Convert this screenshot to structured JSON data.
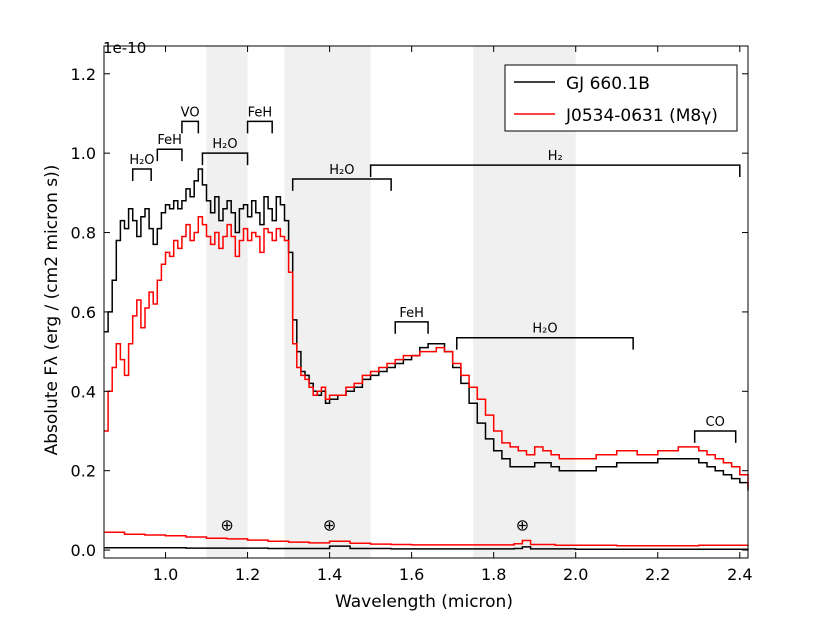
{
  "chart_data": {
    "type": "line",
    "xlabel": "Wavelength (micron)",
    "ylabel": "Absolute Fλ (erg / (cm2 micron s))",
    "offset_label": "1e-10",
    "xlim": [
      0.85,
      2.42
    ],
    "ylim": [
      -0.02,
      1.27
    ],
    "x_ticks": [
      1.0,
      1.2,
      1.4,
      1.6,
      1.8,
      2.0,
      2.2,
      2.4
    ],
    "x_tick_labels": [
      "1.0",
      "1.2",
      "1.4",
      "1.6",
      "1.8",
      "2.0",
      "2.2",
      "2.4"
    ],
    "y_ticks": [
      0.0,
      0.2,
      0.4,
      0.6,
      0.8,
      1.0,
      1.2
    ],
    "y_tick_labels": [
      "0.0",
      "0.2",
      "0.4",
      "0.6",
      "0.8",
      "1.0",
      "1.2"
    ],
    "grid": false,
    "legend_position": "top-right",
    "telluric_bands": [
      [
        1.1,
        1.2
      ],
      [
        1.29,
        1.5
      ],
      [
        1.75,
        2.0
      ]
    ],
    "earth_symbol": "⊕",
    "earth_markers": [
      1.15,
      1.4,
      1.87
    ],
    "earth_marker_y": 0.065,
    "series": [
      {
        "name": "GJ 660.1B",
        "color": "#000000",
        "x": [
          0.85,
          0.86,
          0.87,
          0.88,
          0.89,
          0.9,
          0.91,
          0.92,
          0.93,
          0.94,
          0.95,
          0.96,
          0.97,
          0.98,
          0.99,
          1.0,
          1.01,
          1.02,
          1.03,
          1.04,
          1.05,
          1.06,
          1.07,
          1.08,
          1.09,
          1.1,
          1.11,
          1.12,
          1.13,
          1.14,
          1.15,
          1.16,
          1.17,
          1.18,
          1.19,
          1.2,
          1.21,
          1.22,
          1.23,
          1.24,
          1.25,
          1.26,
          1.27,
          1.28,
          1.29,
          1.3,
          1.31,
          1.32,
          1.33,
          1.34,
          1.35,
          1.36,
          1.37,
          1.38,
          1.39,
          1.4,
          1.42,
          1.44,
          1.46,
          1.48,
          1.5,
          1.52,
          1.54,
          1.56,
          1.58,
          1.6,
          1.62,
          1.64,
          1.66,
          1.68,
          1.7,
          1.72,
          1.74,
          1.76,
          1.78,
          1.8,
          1.82,
          1.84,
          1.86,
          1.88,
          1.9,
          1.92,
          1.94,
          1.96,
          1.98,
          2.0,
          2.05,
          2.1,
          2.15,
          2.2,
          2.25,
          2.28,
          2.3,
          2.32,
          2.34,
          2.36,
          2.38,
          2.4,
          2.42
        ],
        "y": [
          0.55,
          0.6,
          0.68,
          0.78,
          0.83,
          0.81,
          0.86,
          0.83,
          0.79,
          0.84,
          0.86,
          0.81,
          0.77,
          0.81,
          0.85,
          0.87,
          0.86,
          0.88,
          0.86,
          0.88,
          0.91,
          0.89,
          0.93,
          0.96,
          0.92,
          0.88,
          0.85,
          0.89,
          0.83,
          0.86,
          0.88,
          0.85,
          0.8,
          0.86,
          0.87,
          0.84,
          0.88,
          0.85,
          0.82,
          0.89,
          0.86,
          0.83,
          0.89,
          0.87,
          0.83,
          0.75,
          0.58,
          0.5,
          0.45,
          0.44,
          0.42,
          0.4,
          0.39,
          0.4,
          0.37,
          0.38,
          0.39,
          0.4,
          0.41,
          0.43,
          0.44,
          0.45,
          0.46,
          0.47,
          0.48,
          0.49,
          0.51,
          0.52,
          0.52,
          0.5,
          0.46,
          0.42,
          0.37,
          0.32,
          0.28,
          0.25,
          0.23,
          0.21,
          0.21,
          0.21,
          0.22,
          0.22,
          0.21,
          0.2,
          0.2,
          0.2,
          0.21,
          0.22,
          0.22,
          0.23,
          0.23,
          0.23,
          0.22,
          0.21,
          0.2,
          0.19,
          0.18,
          0.17,
          0.15
        ]
      },
      {
        "name": "J0534-0631 (M8γ)",
        "color": "#ff0000",
        "x": [
          0.85,
          0.86,
          0.87,
          0.88,
          0.89,
          0.9,
          0.91,
          0.92,
          0.93,
          0.94,
          0.95,
          0.96,
          0.97,
          0.98,
          0.99,
          1.0,
          1.01,
          1.02,
          1.03,
          1.04,
          1.05,
          1.06,
          1.07,
          1.08,
          1.09,
          1.1,
          1.11,
          1.12,
          1.13,
          1.14,
          1.15,
          1.16,
          1.17,
          1.18,
          1.19,
          1.2,
          1.21,
          1.22,
          1.23,
          1.24,
          1.25,
          1.26,
          1.27,
          1.28,
          1.29,
          1.3,
          1.31,
          1.32,
          1.33,
          1.34,
          1.35,
          1.36,
          1.37,
          1.38,
          1.39,
          1.4,
          1.42,
          1.44,
          1.46,
          1.48,
          1.5,
          1.52,
          1.54,
          1.56,
          1.58,
          1.6,
          1.62,
          1.64,
          1.66,
          1.68,
          1.7,
          1.72,
          1.74,
          1.76,
          1.78,
          1.8,
          1.82,
          1.84,
          1.86,
          1.88,
          1.9,
          1.92,
          1.94,
          1.96,
          1.98,
          2.0,
          2.05,
          2.1,
          2.15,
          2.2,
          2.25,
          2.28,
          2.3,
          2.32,
          2.34,
          2.36,
          2.38,
          2.4,
          2.42
        ],
        "y": [
          0.3,
          0.4,
          0.46,
          0.52,
          0.48,
          0.44,
          0.52,
          0.59,
          0.63,
          0.56,
          0.61,
          0.65,
          0.62,
          0.68,
          0.72,
          0.75,
          0.74,
          0.78,
          0.76,
          0.79,
          0.82,
          0.78,
          0.8,
          0.84,
          0.82,
          0.79,
          0.77,
          0.8,
          0.76,
          0.79,
          0.82,
          0.79,
          0.74,
          0.78,
          0.81,
          0.78,
          0.8,
          0.79,
          0.75,
          0.81,
          0.8,
          0.78,
          0.81,
          0.79,
          0.78,
          0.7,
          0.52,
          0.46,
          0.44,
          0.43,
          0.41,
          0.39,
          0.4,
          0.41,
          0.38,
          0.39,
          0.39,
          0.41,
          0.42,
          0.44,
          0.45,
          0.46,
          0.47,
          0.48,
          0.49,
          0.49,
          0.5,
          0.5,
          0.51,
          0.5,
          0.47,
          0.44,
          0.41,
          0.38,
          0.34,
          0.3,
          0.27,
          0.26,
          0.25,
          0.24,
          0.26,
          0.25,
          0.24,
          0.23,
          0.23,
          0.23,
          0.24,
          0.25,
          0.24,
          0.25,
          0.26,
          0.26,
          0.25,
          0.24,
          0.23,
          0.22,
          0.21,
          0.19,
          0.16
        ]
      },
      {
        "name": "",
        "color": "#ff0000",
        "x": [
          0.85,
          0.9,
          0.95,
          1.0,
          1.05,
          1.1,
          1.15,
          1.2,
          1.25,
          1.3,
          1.35,
          1.4,
          1.45,
          1.5,
          1.55,
          1.6,
          1.65,
          1.7,
          1.75,
          1.8,
          1.85,
          1.87,
          1.89,
          1.95,
          2.0,
          2.1,
          2.2,
          2.3,
          2.42
        ],
        "y": [
          0.045,
          0.04,
          0.038,
          0.036,
          0.033,
          0.03,
          0.028,
          0.025,
          0.022,
          0.02,
          0.018,
          0.022,
          0.017,
          0.015,
          0.014,
          0.013,
          0.013,
          0.013,
          0.013,
          0.013,
          0.016,
          0.024,
          0.014,
          0.012,
          0.012,
          0.011,
          0.011,
          0.012,
          0.013
        ]
      },
      {
        "name": "",
        "color": "#000000",
        "x": [
          0.85,
          0.95,
          1.05,
          1.15,
          1.25,
          1.35,
          1.4,
          1.45,
          1.55,
          1.65,
          1.75,
          1.85,
          1.87,
          1.89,
          2.0,
          2.1,
          2.2,
          2.3,
          2.42
        ],
        "y": [
          0.006,
          0.006,
          0.005,
          0.005,
          0.004,
          0.004,
          0.01,
          0.004,
          0.003,
          0.003,
          0.003,
          0.004,
          0.008,
          0.003,
          0.002,
          0.002,
          0.002,
          0.002,
          0.003
        ]
      }
    ],
    "annotations": [
      {
        "text": "H₂O",
        "x1": 0.92,
        "x2": 0.965,
        "y": 0.96,
        "y_end": 0.93
      },
      {
        "text": "FeH",
        "x1": 0.98,
        "x2": 1.04,
        "y": 1.01,
        "y_end": 0.98
      },
      {
        "text": "VO",
        "x1": 1.04,
        "x2": 1.08,
        "y": 1.08,
        "y_end": 1.05
      },
      {
        "text": "H₂O",
        "x1": 1.09,
        "x2": 1.2,
        "y": 1.0,
        "y_end": 0.97
      },
      {
        "text": "FeH",
        "x1": 1.2,
        "x2": 1.26,
        "y": 1.08,
        "y_end": 1.05
      },
      {
        "text": "H₂O",
        "x1": 1.31,
        "x2": 1.55,
        "y": 0.935,
        "y_end": 0.905
      },
      {
        "text": "H₂",
        "x1": 1.5,
        "x2": 2.4,
        "y": 0.97,
        "y_end": 0.94
      },
      {
        "text": "FeH",
        "x1": 1.56,
        "x2": 1.64,
        "y": 0.575,
        "y_end": 0.545
      },
      {
        "text": "H₂O",
        "x1": 1.71,
        "x2": 2.14,
        "y": 0.535,
        "y_end": 0.505
      },
      {
        "text": "CO",
        "x1": 2.29,
        "x2": 2.39,
        "y": 0.3,
        "y_end": 0.27
      }
    ]
  }
}
